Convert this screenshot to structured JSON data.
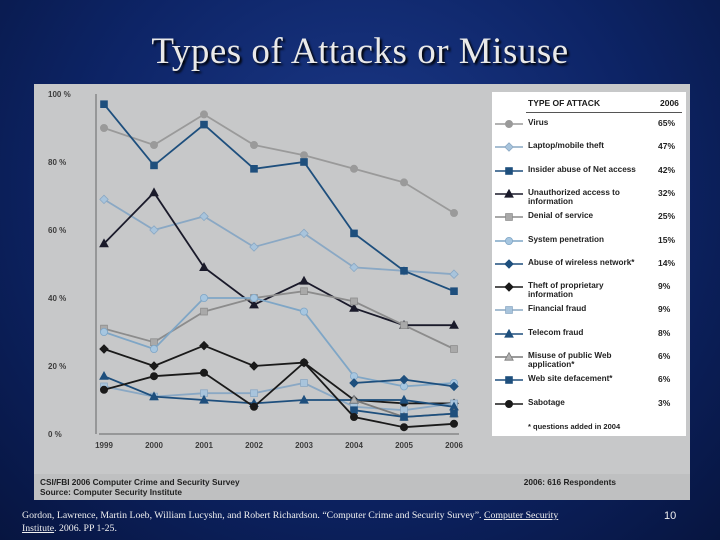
{
  "slide": {
    "title": "Types of Attacks or Misuse",
    "page_number": "10"
  },
  "citation": {
    "text_before": "Gordon, Lawrence, Martin Loeb, William Lucyshn, and Robert Richardson. “Computer Crime and Security Survey”. ",
    "link1": "Computer Security",
    "link2": "Institute",
    "text_after": ". 2006. PP 1-25."
  },
  "figure_footer": {
    "source_line1": "CSI/FBI 2006 Computer Crime and Security Survey",
    "source_line2": "Source: Computer Security Institute",
    "respondents": "2006: 616 Respondents"
  },
  "legend_header": {
    "col1": "TYPE OF ATTACK",
    "col2": "2006"
  },
  "legend_note": "* questions added in 2004",
  "chart_data": {
    "type": "line",
    "x": [
      "1999",
      "2000",
      "2001",
      "2002",
      "2003",
      "2004",
      "2005",
      "2006"
    ],
    "y_ticks": [
      "100 %",
      "80 %",
      "60 %",
      "40 %",
      "20 %",
      "0 %"
    ],
    "ylim": [
      0,
      100
    ],
    "grid": false,
    "legend_position": "right",
    "series": [
      {
        "name": "Virus",
        "pct": "65%",
        "color": "#9a9a9a",
        "marker": "circle",
        "marker_fill": "#9a9a9a",
        "values": [
          90,
          85,
          94,
          85,
          82,
          78,
          74,
          65
        ]
      },
      {
        "name": "Laptop/mobile theft",
        "pct": "47%",
        "color": "#8aa8c4",
        "marker": "diamond",
        "marker_fill": "#a8c4dc",
        "values": [
          69,
          60,
          64,
          55,
          59,
          49,
          48,
          47
        ]
      },
      {
        "name": "Insider abuse of Net access",
        "pct": "42%",
        "color": "#1e4f7d",
        "marker": "square",
        "marker_fill": "#1e4f7d",
        "values": [
          97,
          79,
          91,
          78,
          80,
          59,
          48,
          42
        ]
      },
      {
        "name": "Unauthorized access to information",
        "pct": "32%",
        "color": "#1a1a2a",
        "marker": "triangle",
        "marker_fill": "#1a1a2a",
        "values": [
          56,
          71,
          49,
          38,
          45,
          37,
          32,
          32
        ]
      },
      {
        "name": "Denial of service",
        "pct": "25%",
        "color": "#8c8c8c",
        "marker": "square",
        "marker_fill": "#a9a9a9",
        "values": [
          31,
          27,
          36,
          40,
          42,
          39,
          32,
          25
        ]
      },
      {
        "name": "System penetration",
        "pct": "15%",
        "color": "#7fa6c6",
        "marker": "circle",
        "marker_fill": "#a6c6e0",
        "values": [
          30,
          25,
          40,
          40,
          36,
          17,
          14,
          15
        ]
      },
      {
        "name": "Abuse of wireless network*",
        "pct": "14%",
        "color": "#1e4f7d",
        "marker": "diamond",
        "marker_fill": "#1e4f7d",
        "values": [
          null,
          null,
          null,
          null,
          null,
          15,
          16,
          14
        ]
      },
      {
        "name": "Theft of proprietary information",
        "pct": "9%",
        "color": "#1a1a1a",
        "marker": "diamond",
        "marker_fill": "#1a1a1a",
        "values": [
          25,
          20,
          26,
          20,
          21,
          10,
          9,
          9
        ]
      },
      {
        "name": "Financial fraud",
        "pct": "9%",
        "color": "#8aa8c4",
        "marker": "square",
        "marker_fill": "#a8c4dc",
        "values": [
          14,
          11,
          12,
          12,
          15,
          8,
          7,
          9
        ]
      },
      {
        "name": "Telecom fraud",
        "pct": "8%",
        "color": "#1e4f7d",
        "marker": "triangle",
        "marker_fill": "#1e4f7d",
        "values": [
          17,
          11,
          10,
          9,
          10,
          10,
          10,
          8
        ]
      },
      {
        "name": "Misuse of public Web application*",
        "pct": "6%",
        "color": "#7a7a7a",
        "marker": "triangle",
        "marker_fill": "#b0b0b0",
        "values": [
          null,
          null,
          null,
          null,
          null,
          10,
          5,
          6
        ]
      },
      {
        "name": "Web site defacement*",
        "pct": "6%",
        "color": "#1e4f7d",
        "marker": "square",
        "marker_fill": "#1e4f7d",
        "values": [
          null,
          null,
          null,
          null,
          null,
          7,
          5,
          6
        ]
      },
      {
        "name": "Sabotage",
        "pct": "3%",
        "color": "#1a1a1a",
        "marker": "circle",
        "marker_fill": "#1a1a1a",
        "values": [
          13,
          17,
          18,
          8,
          21,
          5,
          2,
          3
        ]
      }
    ]
  }
}
